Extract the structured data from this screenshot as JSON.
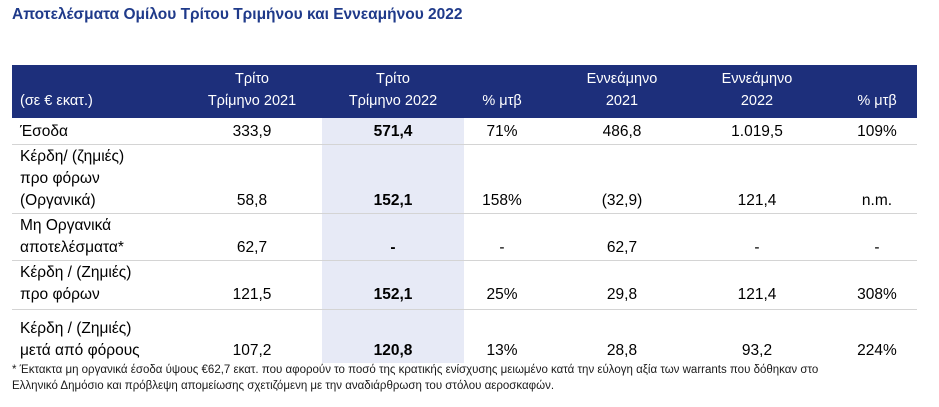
{
  "title": "Αποτελέσματα Ομίλου Τρίτου Τριμήνου και Εννεαμήνου 2022",
  "header": {
    "unit_label": "(σε € εκατ.)",
    "col1_line1": "Τρίτο",
    "col1_line2": "Τρίμηνο 2021",
    "col2_line1": "Τρίτο",
    "col2_line2": "Τρίμηνο 2022",
    "col3": "% μτβ",
    "col4_line1": "Εννεάμηνο",
    "col4_line2": "2021",
    "col5_line1": "Εννεάμηνο",
    "col5_line2": "2022",
    "col6": "% μτβ"
  },
  "rows": [
    {
      "label": [
        "Έσοδα"
      ],
      "values": [
        "333,9",
        "571,4",
        "71%",
        "486,8",
        "1.019,5",
        "109%"
      ]
    },
    {
      "label": [
        "Κέρδη/ (ζημιές)",
        "προ φόρων",
        "(Οργανικά)"
      ],
      "values": [
        "58,8",
        "152,1",
        "158%",
        "(32,9)",
        "121,4",
        "n.m."
      ]
    },
    {
      "label": [
        "Μη Οργανικά",
        "αποτελέσματα*"
      ],
      "values": [
        "62,7",
        "-",
        "-",
        "62,7",
        "-",
        "-"
      ]
    },
    {
      "label": [
        "Κέρδη / (Ζημιές)",
        "προ φόρων"
      ],
      "values": [
        "121,5",
        "152,1",
        "25%",
        "29,8",
        "121,4",
        "308%"
      ]
    },
    {
      "label": [
        "Κέρδη / (Ζημιές)",
        "μετά από φόρους"
      ],
      "values": [
        "107,2",
        "120,8",
        "13%",
        "28,8",
        "93,2",
        "224%"
      ]
    }
  ],
  "footnote": {
    "line1": "* Έκτακτα μη οργανικά έσοδα ύψους €62,7 εκατ. που αφορούν το ποσό της κρατικής ενίσχυσης μειωμένο κατά την εύλογη αξία των warrants που δόθηκαν στο",
    "line2": "Ελληνικό Δημόσιο και πρόβλεψη απομείωσης σχετιζόμενη με την αναδιάρθρωση του στόλου αεροσκαφών."
  },
  "colors": {
    "header_bg": "#1d2f7b",
    "title": "#1f3a8a",
    "highlight_col": "#e7eaf6"
  }
}
